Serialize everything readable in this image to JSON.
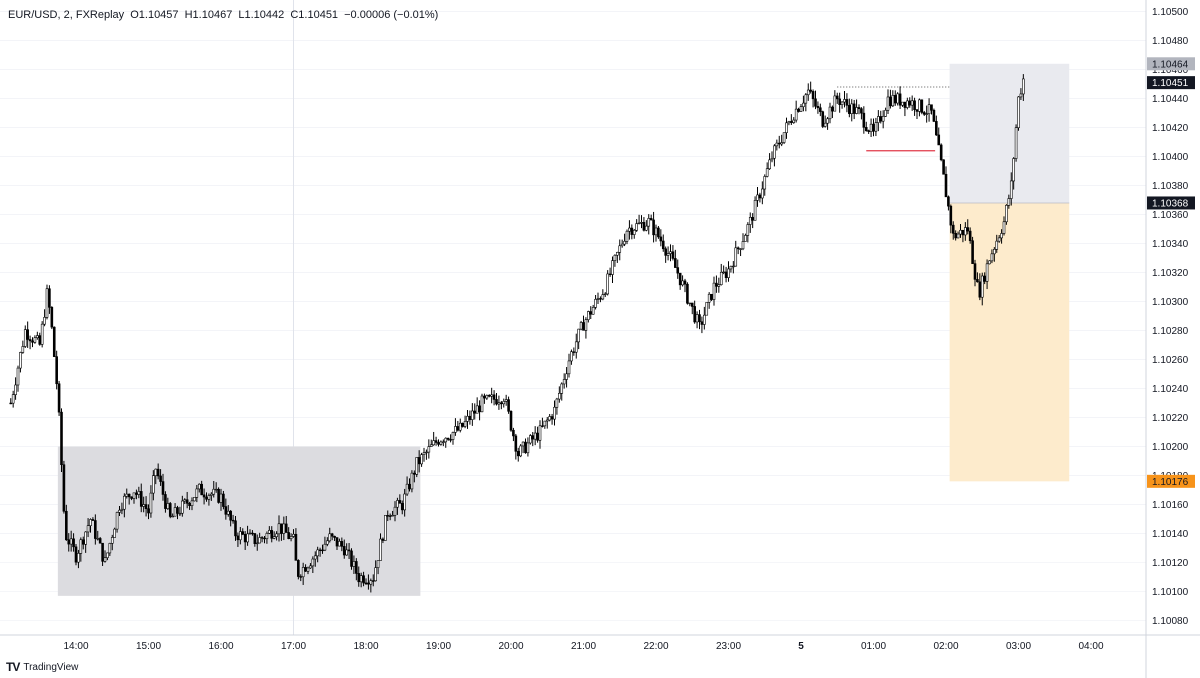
{
  "legend": {
    "symbol": "EUR/USD, 2, FXReplay",
    "open": "O1.10457",
    "high": "H1.10467",
    "low": "L1.10442",
    "close": "C1.10451",
    "change": "−0.00006 (−0.01%)"
  },
  "brand": {
    "logo": "TV",
    "name": "TradingView"
  },
  "colors": {
    "candle": "#000000",
    "grid": "#e0e3eb",
    "range_box": "#dcdce0",
    "target_box": "#e9eaef",
    "stop_box": "#fdebcc",
    "stop_tag": "#f7931a",
    "entry_tag": "#131722",
    "target_tag": "#b2b5be",
    "red_line": "#e0394a"
  },
  "chart_data": {
    "type": "candlestick",
    "symbol": "EUR/USD",
    "timeframe_minutes": 2,
    "x_ticks": [
      "14:00",
      "15:00",
      "16:00",
      "17:00",
      "18:00",
      "19:00",
      "20:00",
      "21:00",
      "22:00",
      "23:00",
      "5",
      "01:00",
      "02:00",
      "03:00",
      "04:00"
    ],
    "y_ticks": [
      "1.10500",
      "1.10480",
      "1.10460",
      "1.10440",
      "1.10420",
      "1.10400",
      "1.10380",
      "1.10360",
      "1.10340",
      "1.10320",
      "1.10300",
      "1.10280",
      "1.10260",
      "1.10240",
      "1.10220",
      "1.10200",
      "1.10180",
      "1.10160",
      "1.10140",
      "1.10120",
      "1.10100",
      "1.10080"
    ],
    "ylim": [
      1.1007,
      1.10508
    ],
    "xlim_hours": [
      13.1,
      28.6
    ],
    "price_path": [
      [
        13.1,
        1.1023
      ],
      [
        13.3,
        1.1028
      ],
      [
        13.5,
        1.1027
      ],
      [
        13.6,
        1.10305
      ],
      [
        13.65,
        1.1029
      ],
      [
        13.75,
        1.10235
      ],
      [
        13.85,
        1.1014
      ],
      [
        14.0,
        1.10125
      ],
      [
        14.2,
        1.1015
      ],
      [
        14.4,
        1.1012
      ],
      [
        14.6,
        1.1016
      ],
      [
        14.8,
        1.1017
      ],
      [
        15.0,
        1.10155
      ],
      [
        15.1,
        1.10185
      ],
      [
        15.3,
        1.1015
      ],
      [
        15.5,
        1.1016
      ],
      [
        15.7,
        1.1017
      ],
      [
        16.0,
        1.10165
      ],
      [
        16.2,
        1.1014
      ],
      [
        16.5,
        1.10135
      ],
      [
        16.8,
        1.10145
      ],
      [
        17.0,
        1.10135
      ],
      [
        17.05,
        1.10112
      ],
      [
        17.3,
        1.10125
      ],
      [
        17.5,
        1.10137
      ],
      [
        17.7,
        1.1013
      ],
      [
        17.9,
        1.1011
      ],
      [
        18.1,
        1.1011
      ],
      [
        18.3,
        1.10155
      ],
      [
        18.5,
        1.1016
      ],
      [
        18.7,
        1.10188
      ],
      [
        19.0,
        1.10205
      ],
      [
        19.3,
        1.10212
      ],
      [
        19.6,
        1.1023
      ],
      [
        19.9,
        1.10235
      ],
      [
        20.1,
        1.10195
      ],
      [
        20.4,
        1.1021
      ],
      [
        20.6,
        1.10225
      ],
      [
        20.8,
        1.1026
      ],
      [
        21.0,
        1.10285
      ],
      [
        21.3,
        1.1031
      ],
      [
        21.6,
        1.1035
      ],
      [
        21.9,
        1.10355
      ],
      [
        22.1,
        1.1034
      ],
      [
        22.3,
        1.1032
      ],
      [
        22.6,
        1.10282
      ],
      [
        22.8,
        1.1031
      ],
      [
        23.0,
        1.10322
      ],
      [
        23.3,
        1.10355
      ],
      [
        23.6,
        1.104
      ],
      [
        23.9,
        1.1043
      ],
      [
        24.1,
        1.10445
      ],
      [
        24.3,
        1.10425
      ],
      [
        24.5,
        1.1044
      ],
      [
        24.8,
        1.1043
      ],
      [
        25.0,
        1.10415
      ],
      [
        25.2,
        1.1044
      ],
      [
        25.5,
        1.10438
      ],
      [
        25.8,
        1.1043
      ],
      [
        25.95,
        1.1039
      ],
      [
        26.1,
        1.10345
      ],
      [
        26.3,
        1.1035
      ],
      [
        26.45,
        1.10305
      ],
      [
        26.6,
        1.1033
      ],
      [
        26.8,
        1.10355
      ],
      [
        26.9,
        1.1038
      ],
      [
        27.0,
        1.1044
      ],
      [
        27.1,
        1.1046
      ]
    ],
    "range_box": {
      "x0_h": 13.75,
      "x1_h": 18.75,
      "y0": 1.10097,
      "y1": 1.102
    },
    "position": {
      "x0_h": 26.05,
      "x1_h": 27.7,
      "target": 1.10464,
      "entry": 1.10368,
      "stop": 1.10176
    },
    "dotted_line": {
      "x0_h": 24.5,
      "x1_h": 26.05,
      "y": 1.10448
    },
    "red_line": {
      "x0_h": 24.9,
      "x1_h": 25.85,
      "y": 1.10404
    },
    "price_tags": {
      "target": "1.10464",
      "last": "1.10451",
      "entry": "1.10368",
      "stop": "1.10176"
    },
    "session_line_h": 17.0
  }
}
